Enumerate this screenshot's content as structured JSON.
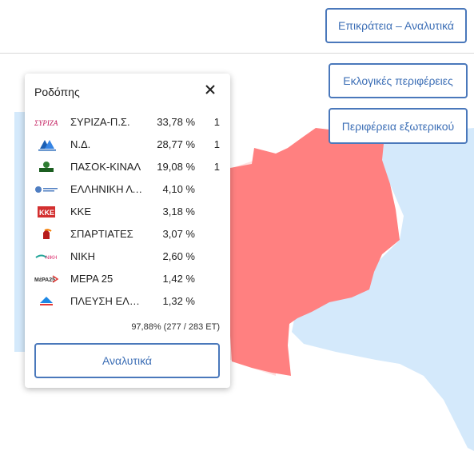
{
  "buttons": {
    "top": "Επικράτεια – Αναλυτικά",
    "regions": "Εκλογικές περιφέρειες",
    "abroad": "Περιφέρεια εξωτερικού"
  },
  "popup": {
    "title": "Ροδόπης",
    "parties": [
      {
        "name": "ΣΥΡΙΖΑ-Π.Σ.",
        "percent": "33,78 %",
        "seats": "1",
        "logo": "syriza-logo"
      },
      {
        "name": "Ν.Δ.",
        "percent": "28,77 %",
        "seats": "1",
        "logo": "nd-logo"
      },
      {
        "name": "ΠΑΣΟΚ-ΚΙΝΑΛ",
        "percent": "19,08 %",
        "seats": "1",
        "logo": "pasok-logo"
      },
      {
        "name": "ΕΛΛΗΝΙΚΗ ΛΥΣΗ",
        "percent": "4,10 %",
        "seats": "",
        "logo": "elliniki-lysi-logo"
      },
      {
        "name": "ΚΚΕ",
        "percent": "3,18 %",
        "seats": "",
        "logo": "kke-logo"
      },
      {
        "name": "ΣΠΑΡΤΙΑΤΕΣ",
        "percent": "3,07 %",
        "seats": "",
        "logo": "spartiates-logo"
      },
      {
        "name": "ΝΙΚΗ",
        "percent": "2,60 %",
        "seats": "",
        "logo": "niki-logo"
      },
      {
        "name": "ΜΕΡΑ 25",
        "percent": "1,42 %",
        "seats": "",
        "logo": "mera25-logo"
      },
      {
        "name": "ΠΛΕΥΣΗ ΕΛΕΥΘΕΡΙΑΣ",
        "percent": "1,32 %",
        "seats": "",
        "logo": "plefsi-logo"
      }
    ],
    "counted": "97,88% (277 / 283 ΕΤ)",
    "details_label": "Αναλυτικά"
  },
  "colors": {
    "sea": "#d4e9fb",
    "region_selected": "#ff8080",
    "region_neighbor": "#ffe0e0",
    "accent": "#4a78bb"
  }
}
